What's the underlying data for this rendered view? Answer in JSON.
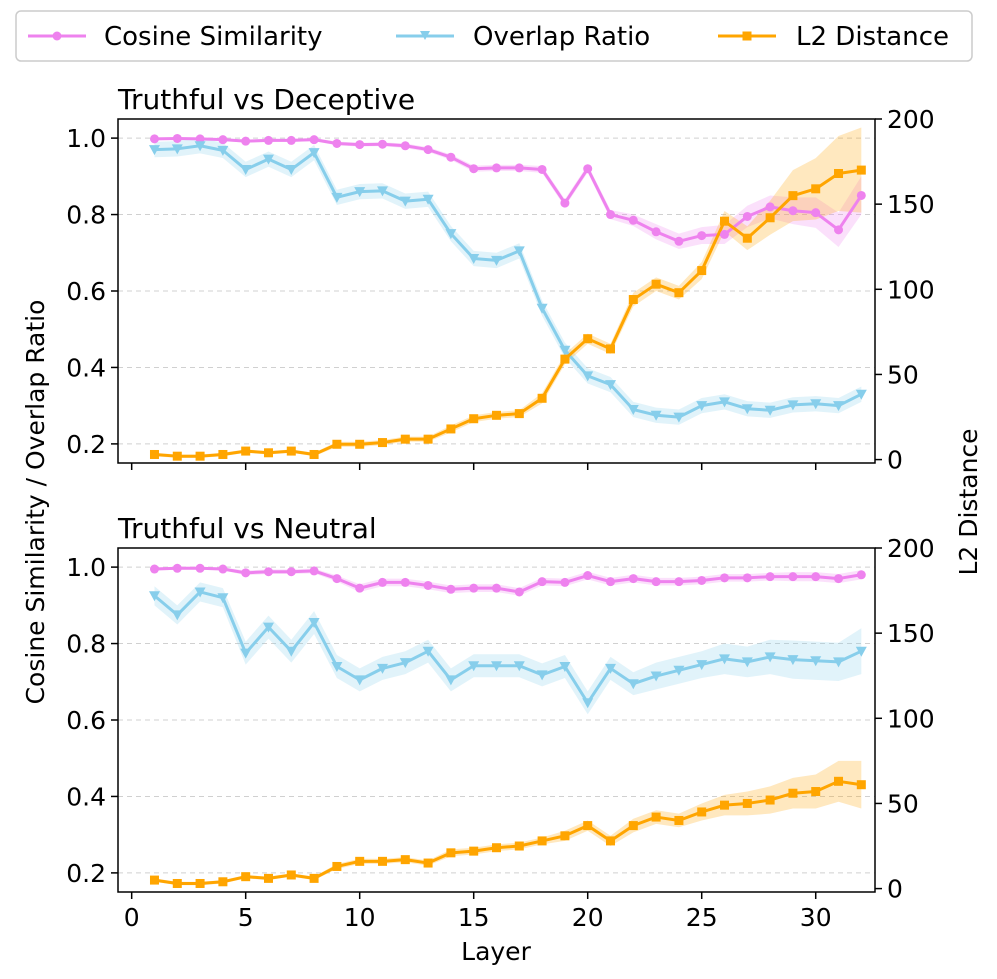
{
  "chart_data": {
    "type": "line",
    "colors": {
      "cosine": "#ee82ee",
      "overlap": "#87ceeb",
      "l2": "#ffa500"
    },
    "legend": {
      "position": "top",
      "entries": [
        "Cosine Similarity",
        "Overlap Ratio",
        "L2 Distance"
      ]
    },
    "shared_xlabel": "Layer",
    "left_ylabel": "Cosine Similarity / Overlap Ratio",
    "right_ylabel": "L2 Distance",
    "x_ticks": [
      "0",
      "5",
      "10",
      "15",
      "20",
      "25",
      "30"
    ],
    "x": [
      1,
      2,
      3,
      4,
      5,
      6,
      7,
      8,
      9,
      10,
      11,
      12,
      13,
      14,
      15,
      16,
      17,
      18,
      19,
      20,
      21,
      22,
      23,
      24,
      25,
      26,
      27,
      28,
      29,
      30,
      31,
      32
    ],
    "xlim": [
      -0.6,
      32.6
    ],
    "panels": [
      {
        "title": "Truthful vs Deceptive",
        "left_ylim": [
          0.15,
          1.05
        ],
        "right_ylim": [
          -2,
          200
        ],
        "left_ticks": [
          "0.2",
          "0.4",
          "0.6",
          "0.8",
          "1.0"
        ],
        "right_ticks": [
          "0",
          "50",
          "100",
          "150",
          "200"
        ],
        "grid": true,
        "series": [
          {
            "name": "Cosine Similarity",
            "axis": "left",
            "marker": "circle",
            "values": [
              0.998,
              0.999,
              0.998,
              0.996,
              0.992,
              0.994,
              0.994,
              0.996,
              0.986,
              0.983,
              0.984,
              0.98,
              0.97,
              0.95,
              0.92,
              0.922,
              0.922,
              0.918,
              0.83,
              0.92,
              0.8,
              0.785,
              0.755,
              0.73,
              0.745,
              0.748,
              0.795,
              0.82,
              0.81,
              0.805,
              0.76,
              0.85
            ],
            "band": [
              0.003,
              0.003,
              0.003,
              0.003,
              0.004,
              0.004,
              0.004,
              0.004,
              0.005,
              0.005,
              0.005,
              0.006,
              0.006,
              0.007,
              0.008,
              0.008,
              0.008,
              0.009,
              0.01,
              0.01,
              0.012,
              0.015,
              0.02,
              0.02,
              0.022,
              0.025,
              0.028,
              0.03,
              0.035,
              0.04,
              0.045,
              0.05
            ]
          },
          {
            "name": "Overlap Ratio",
            "axis": "left",
            "marker": "triangle-down",
            "values": [
              0.97,
              0.972,
              0.98,
              0.968,
              0.918,
              0.945,
              0.918,
              0.962,
              0.845,
              0.86,
              0.862,
              0.835,
              0.84,
              0.75,
              0.685,
              0.68,
              0.705,
              0.555,
              0.445,
              0.378,
              0.355,
              0.29,
              0.275,
              0.27,
              0.3,
              0.31,
              0.292,
              0.288,
              0.302,
              0.305,
              0.3,
              0.33
            ],
            "band": [
              0.02,
              0.02,
              0.02,
              0.02,
              0.02,
              0.02,
              0.02,
              0.02,
              0.02,
              0.02,
              0.02,
              0.02,
              0.02,
              0.02,
              0.02,
              0.02,
              0.02,
              0.02,
              0.02,
              0.02,
              0.02,
              0.02,
              0.02,
              0.02,
              0.02,
              0.02,
              0.02,
              0.02,
              0.02,
              0.02,
              0.02,
              0.02
            ]
          },
          {
            "name": "L2 Distance",
            "axis": "right",
            "marker": "square",
            "values": [
              3,
              2,
              2,
              3,
              5,
              4,
              5,
              3,
              9,
              9,
              10,
              12,
              12,
              18,
              24,
              26,
              27,
              36,
              59,
              71,
              65,
              94,
              103,
              98,
              111,
              140,
              130,
              142,
              155,
              159,
              168,
              170
            ],
            "band": [
              1,
              1,
              1,
              1,
              1,
              1,
              1,
              1,
              1.5,
              1.5,
              1.5,
              1.5,
              1.5,
              2,
              2,
              2,
              2,
              3,
              3,
              3,
              3,
              4,
              4,
              4,
              5,
              6,
              7,
              10,
              15,
              18,
              22,
              25
            ]
          }
        ]
      },
      {
        "title": "Truthful vs Neutral",
        "left_ylim": [
          0.15,
          1.05
        ],
        "right_ylim": [
          -2,
          200
        ],
        "left_ticks": [
          "0.2",
          "0.4",
          "0.6",
          "0.8",
          "1.0"
        ],
        "right_ticks": [
          "0",
          "50",
          "100",
          "150",
          "200"
        ],
        "grid": true,
        "series": [
          {
            "name": "Cosine Similarity",
            "axis": "left",
            "marker": "circle",
            "values": [
              0.995,
              0.997,
              0.997,
              0.995,
              0.985,
              0.988,
              0.988,
              0.99,
              0.97,
              0.945,
              0.96,
              0.96,
              0.952,
              0.942,
              0.945,
              0.945,
              0.935,
              0.962,
              0.96,
              0.978,
              0.962,
              0.97,
              0.962,
              0.962,
              0.965,
              0.972,
              0.972,
              0.975,
              0.975,
              0.975,
              0.97,
              0.98
            ],
            "band": [
              0.004,
              0.004,
              0.004,
              0.004,
              0.006,
              0.006,
              0.006,
              0.006,
              0.008,
              0.01,
              0.01,
              0.01,
              0.01,
              0.01,
              0.01,
              0.01,
              0.01,
              0.01,
              0.01,
              0.01,
              0.01,
              0.01,
              0.01,
              0.01,
              0.01,
              0.01,
              0.01,
              0.01,
              0.012,
              0.012,
              0.012,
              0.012
            ]
          },
          {
            "name": "Overlap Ratio",
            "axis": "left",
            "marker": "triangle-down",
            "values": [
              0.925,
              0.875,
              0.935,
              0.92,
              0.775,
              0.843,
              0.78,
              0.855,
              0.74,
              0.705,
              0.735,
              0.75,
              0.78,
              0.705,
              0.742,
              0.742,
              0.742,
              0.718,
              0.74,
              0.645,
              0.735,
              0.695,
              0.715,
              0.73,
              0.745,
              0.76,
              0.752,
              0.765,
              0.758,
              0.755,
              0.752,
              0.78
            ],
            "band": [
              0.025,
              0.025,
              0.025,
              0.025,
              0.03,
              0.03,
              0.03,
              0.03,
              0.03,
              0.03,
              0.03,
              0.03,
              0.03,
              0.03,
              0.03,
              0.03,
              0.03,
              0.03,
              0.03,
              0.03,
              0.03,
              0.03,
              0.035,
              0.035,
              0.035,
              0.04,
              0.04,
              0.045,
              0.05,
              0.05,
              0.05,
              0.06
            ]
          },
          {
            "name": "L2 Distance",
            "axis": "right",
            "marker": "square",
            "values": [
              5,
              3,
              3,
              4,
              7,
              6,
              8,
              6,
              13,
              16,
              16,
              17,
              15,
              21,
              22,
              24,
              25,
              28,
              31,
              37,
              28,
              37,
              42,
              40,
              45,
              49,
              50,
              52,
              56,
              57,
              63,
              61
            ],
            "band": [
              1,
              1,
              1,
              1,
              1,
              1,
              1,
              1,
              1.5,
              1.5,
              1.5,
              1.5,
              1.5,
              2,
              2,
              2,
              2,
              2,
              3,
              3,
              3,
              4,
              4,
              4,
              5,
              6,
              7,
              8,
              9,
              10,
              12,
              14
            ]
          }
        ]
      }
    ]
  }
}
